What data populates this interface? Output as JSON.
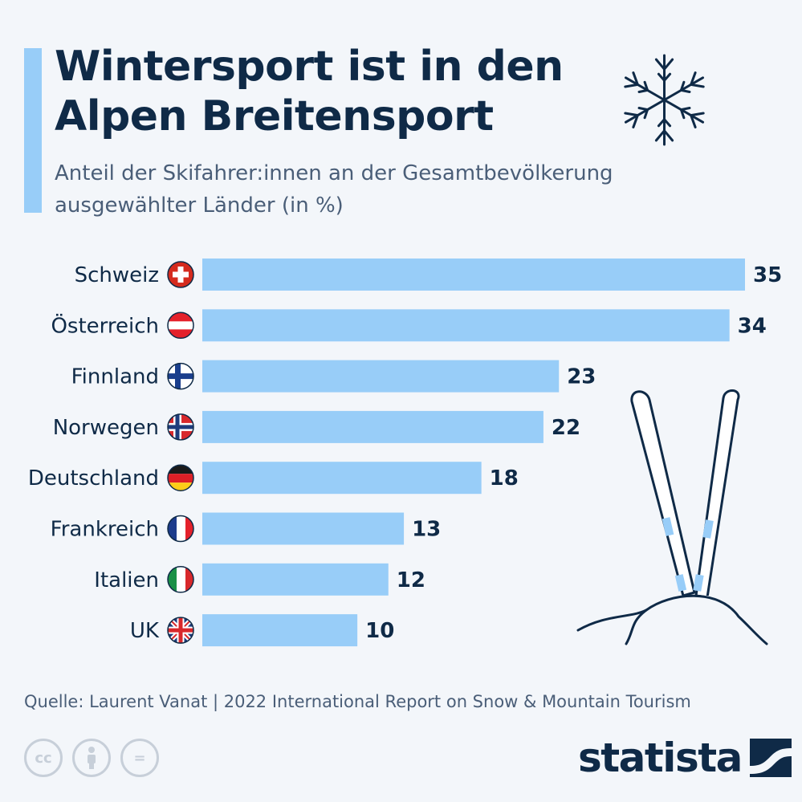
{
  "header": {
    "title": "Wintersport ist in den Alpen Breitensport",
    "subtitle": "Anteil der Skifahrer:innen an der Gesamtbevölkerung ausgewählter Länder (in %)"
  },
  "chart_data": {
    "type": "bar",
    "orientation": "horizontal",
    "categories": [
      "Schweiz",
      "Österreich",
      "Finnland",
      "Norwegen",
      "Deutschland",
      "Frankreich",
      "Italien",
      "UK"
    ],
    "values": [
      35,
      34,
      23,
      22,
      18,
      13,
      12,
      10
    ],
    "title": "Wintersport ist in den Alpen Breitensport",
    "subtitle": "Anteil der Skifahrer:innen an der Gesamtbevölkerung ausgewählter Länder (in %)",
    "xlabel": "",
    "ylabel": "",
    "xlim": [
      0,
      35
    ],
    "grid": false,
    "legend": "none",
    "bar_color": "#98cdf8",
    "flags": [
      "flag-switzerland-icon",
      "flag-austria-icon",
      "flag-finland-icon",
      "flag-norway-icon",
      "flag-germany-icon",
      "flag-france-icon",
      "flag-italy-icon",
      "flag-uk-icon"
    ]
  },
  "footer": {
    "source": "Quelle: Laurent Vanat | 2022 International Report on Snow & Mountain Tourism",
    "logo": "statista",
    "cc_icons": [
      "cc-icon",
      "by-icon",
      "nd-icon"
    ],
    "cc_labels": [
      "cc",
      "",
      "="
    ]
  },
  "decorations": {
    "snowflake": "snowflake-icon",
    "skis": "skis-icon"
  },
  "colors": {
    "accent": "#98cdf8",
    "title": "#0f2a47",
    "text": "#4a5e78",
    "background": "#f3f6fa"
  }
}
